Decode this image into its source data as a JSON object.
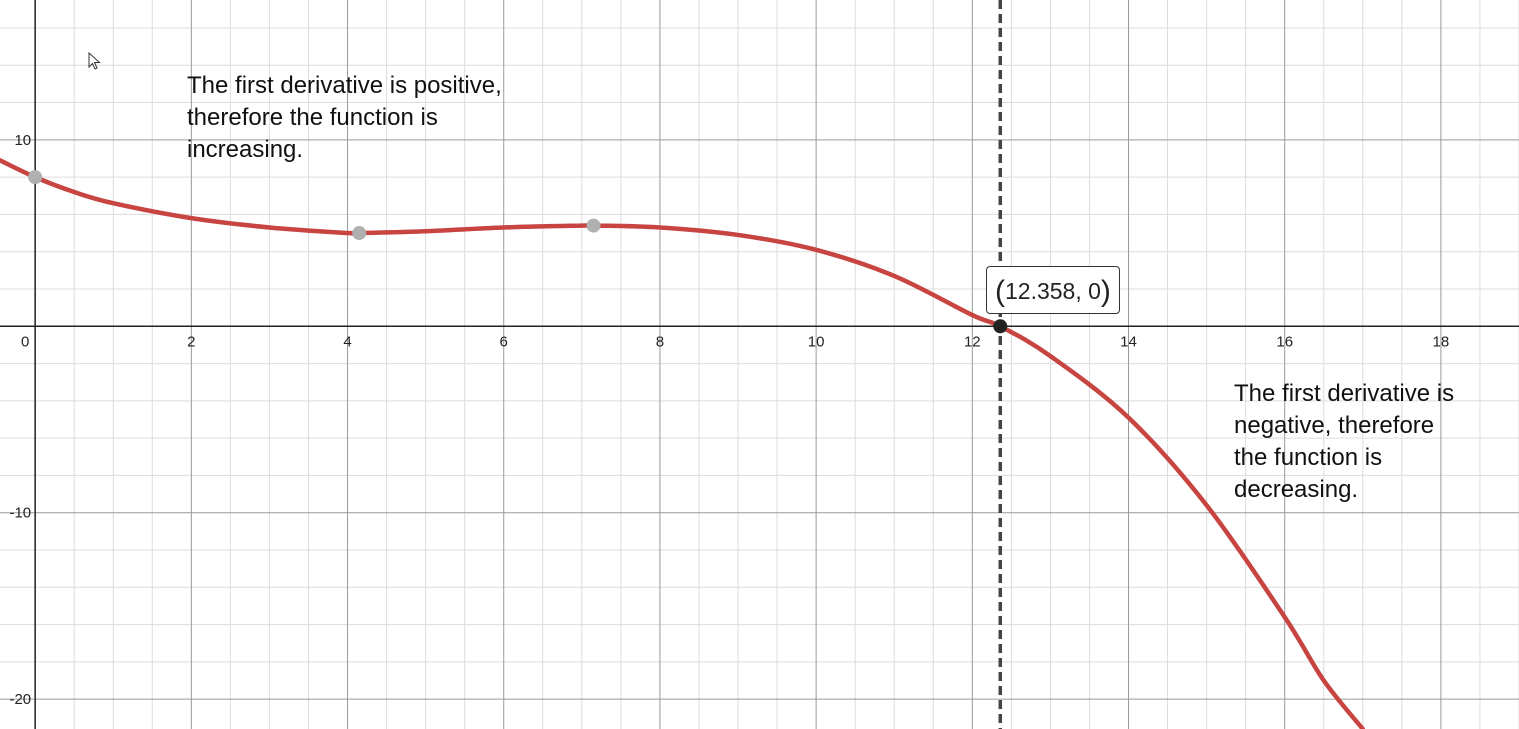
{
  "chart_data": {
    "type": "line",
    "xlim": [
      -0.45,
      19.0
    ],
    "ylim": [
      -21.6,
      17.5
    ],
    "grid": true,
    "x_ticks": [
      0,
      2,
      4,
      6,
      8,
      10,
      12,
      14,
      16,
      18
    ],
    "y_ticks": [
      10,
      -10,
      -20
    ],
    "x_tick_labels": [
      "0",
      "2",
      "4",
      "6",
      "8",
      "10",
      "12",
      "14",
      "16",
      "18"
    ],
    "y_tick_labels": [
      "10",
      "-10",
      "-20"
    ],
    "series": [
      {
        "color": "#c74440",
        "x": [
          -0.45,
          0,
          0.5,
          1,
          2,
          3,
          4,
          4.15,
          5,
          6,
          7,
          7.15,
          8,
          9,
          10,
          11,
          12,
          12.358,
          13,
          14,
          15,
          16,
          16.5,
          17.0
        ],
        "y": [
          8.9,
          8.0,
          7.2,
          6.6,
          5.8,
          5.3,
          5.0,
          5.0,
          5.1,
          5.3,
          5.4,
          5.4,
          5.3,
          4.9,
          4.1,
          2.7,
          0.6,
          0.0,
          -1.6,
          -4.9,
          -9.6,
          -15.6,
          -19.0,
          -21.6
        ]
      }
    ],
    "marked_points": [
      {
        "x": 0,
        "y": 8.0,
        "color": "#b0b0b0"
      },
      {
        "x": 4.15,
        "y": 5.0,
        "color": "#b0b0b0"
      },
      {
        "x": 7.15,
        "y": 5.4,
        "color": "#b0b0b0"
      },
      {
        "x": 12.358,
        "y": 0,
        "color": "#222222"
      }
    ],
    "vertical_line": {
      "x": 12.358,
      "style": "dashed",
      "color": "#444444"
    },
    "tooltip": {
      "point_label": "12.358, 0",
      "open": "(",
      "close": ")"
    },
    "annotations": [
      {
        "text": "The first derivative is positive,\ntherefore the function is\nincreasing."
      },
      {
        "text": "The first derivative is\nnegative, therefore\nthe function is\ndecreasing."
      }
    ]
  }
}
